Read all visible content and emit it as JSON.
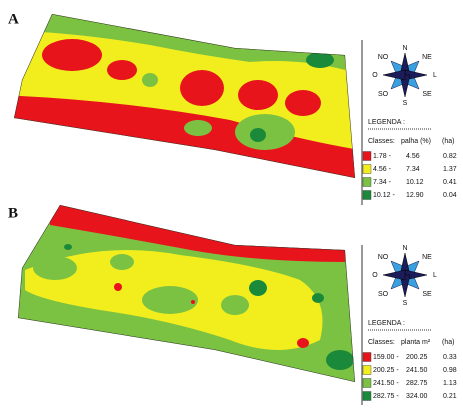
{
  "panels": [
    {
      "label": "A",
      "compass": [
        "N",
        "NE",
        "L",
        "SE",
        "S",
        "SO",
        "O",
        "NO"
      ],
      "legend": {
        "title": "LEGENDA :",
        "headers": [
          "Classes:",
          "palha (%)",
          "(ha)"
        ],
        "rows": [
          {
            "from": "1.78 -",
            "to": "4.56",
            "ha": "0.82"
          },
          {
            "from": "4.56 -",
            "to": "7.34",
            "ha": "1.37"
          },
          {
            "from": "7.34 -",
            "to": "10.12",
            "ha": "0.41"
          },
          {
            "from": "10.12 -",
            "to": "12.90",
            "ha": "0.04"
          }
        ]
      }
    },
    {
      "label": "B",
      "compass": [
        "N",
        "NE",
        "L",
        "SE",
        "S",
        "SO",
        "O",
        "NO"
      ],
      "legend": {
        "title": "LEGENDA :",
        "headers": [
          "Classes:",
          "planta m²",
          "(ha)"
        ],
        "rows": [
          {
            "from": "159.00 -",
            "to": "200.25",
            "ha": "0.33"
          },
          {
            "from": "200.25 -",
            "to": "241.50",
            "ha": "0.98"
          },
          {
            "from": "241.50 -",
            "to": "282.75",
            "ha": "1.13"
          },
          {
            "from": "282.75 -",
            "to": "324.00",
            "ha": "0.21"
          }
        ]
      }
    }
  ]
}
